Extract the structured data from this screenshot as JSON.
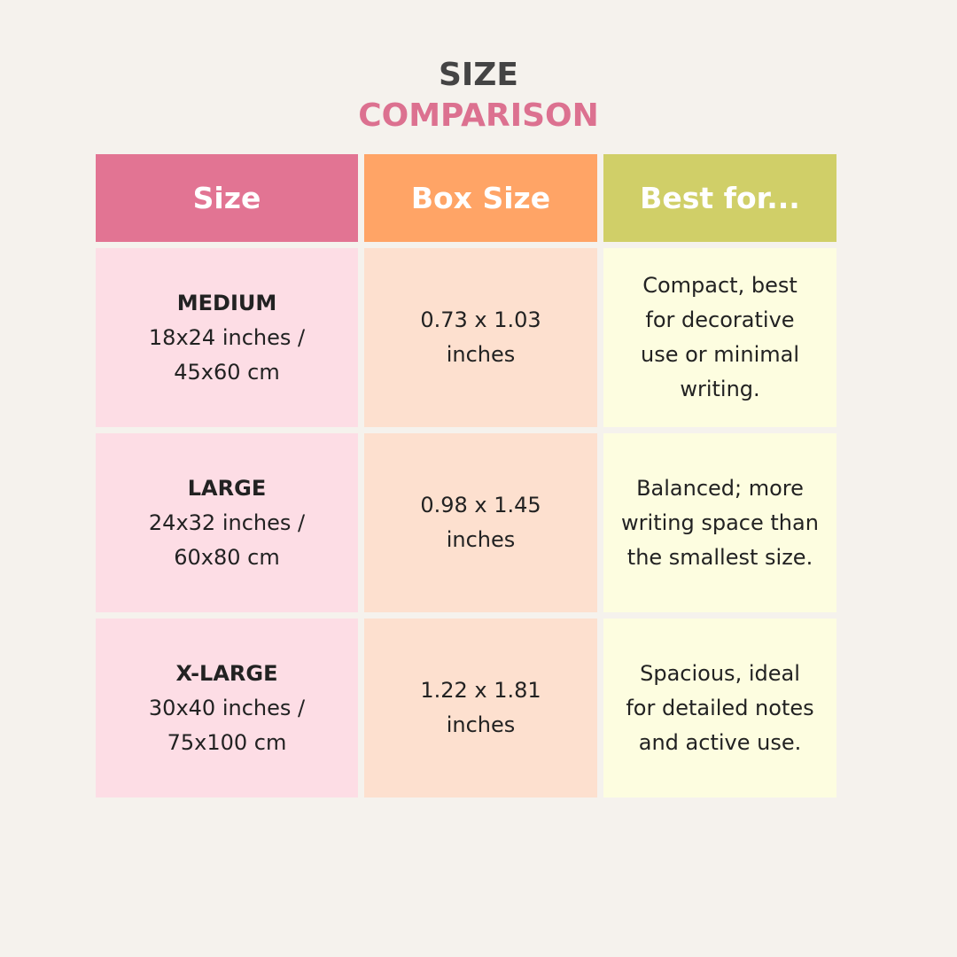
{
  "title": {
    "line1": "SIZE",
    "line2": "COMPARISON"
  },
  "colors": {
    "header_size": "#e27493",
    "header_box": "#ffa466",
    "header_best": "#d0cf68",
    "cell_size": "#fddde5",
    "cell_box": "#fde0cf",
    "cell_best": "#fdfde0",
    "background": "#f5f2ed"
  },
  "table": {
    "headers": [
      "Size",
      "Box Size",
      "Best for..."
    ],
    "rows": [
      {
        "name": "MEDIUM",
        "dims": "18x24 inches / 45x60 cm",
        "box": "0.73 x 1.03 inches",
        "best": "Compact, best for decorative use or minimal writing."
      },
      {
        "name": "LARGE",
        "dims": "24x32 inches / 60x80 cm",
        "box": "0.98 x 1.45 inches",
        "best": "Balanced; more writing space than the smallest size."
      },
      {
        "name": "X-LARGE",
        "dims": "30x40 inches / 75x100 cm",
        "box": "1.22 x 1.81 inches",
        "best": "Spacious, ideal for detailed notes and active use."
      }
    ]
  }
}
